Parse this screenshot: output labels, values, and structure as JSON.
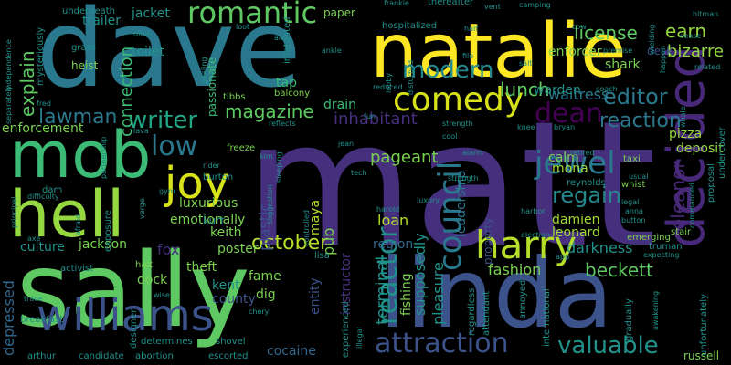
{
  "words": [
    {
      "text": "matt",
      "color": "#46307e"
    },
    {
      "text": "dave",
      "color": "#2a788e"
    },
    {
      "text": "sally",
      "color": "#5ec962"
    },
    {
      "text": "linda",
      "color": "#3b528b"
    },
    {
      "text": "natalie",
      "color": "#fde725"
    },
    {
      "text": "mob",
      "color": "#3bbb75"
    },
    {
      "text": "hell",
      "color": "#95d840"
    },
    {
      "text": "williams",
      "color": "#3b528b"
    },
    {
      "text": "decided",
      "color": "#482878"
    },
    {
      "text": "harry",
      "color": "#b5de2b"
    },
    {
      "text": "comedy",
      "color": "#d8e219"
    },
    {
      "text": "joy",
      "color": "#d8e219"
    },
    {
      "text": "modern",
      "color": "#23888e"
    },
    {
      "text": "romantic",
      "color": "#5ec962"
    },
    {
      "text": "attraction",
      "color": "#3b528b"
    },
    {
      "text": "writer",
      "color": "#21a685"
    },
    {
      "text": "jewel",
      "color": "#2a788e"
    },
    {
      "text": "dean",
      "color": "#440154"
    },
    {
      "text": "council",
      "color": "#2a788e"
    },
    {
      "text": "reactor",
      "color": "#21918c"
    },
    {
      "text": "valuable",
      "color": "#21918c"
    },
    {
      "text": "editor",
      "color": "#2a788e"
    },
    {
      "text": "reaction",
      "color": "#2a788e"
    },
    {
      "text": "low",
      "color": "#2a788e"
    },
    {
      "text": "lawman",
      "color": "#2a788e"
    },
    {
      "text": "explain",
      "color": "#5ec962"
    },
    {
      "text": "regain",
      "color": "#23888e"
    },
    {
      "text": "october",
      "color": "#b5de2b"
    },
    {
      "text": "beckett",
      "color": "#5ec962"
    },
    {
      "text": "magazine",
      "color": "#5ec962"
    },
    {
      "text": "lunch",
      "color": "#5ec962"
    },
    {
      "text": "license",
      "color": "#5ec962"
    },
    {
      "text": "earn",
      "color": "#95d840"
    },
    {
      "text": "bizarre",
      "color": "#95d840"
    },
    {
      "text": "eleanor",
      "color": "#482878"
    },
    {
      "text": "inhabitant",
      "color": "#46307e"
    },
    {
      "text": "pageant",
      "color": "#7ad151"
    },
    {
      "text": "terminal",
      "color": "#21918c"
    },
    {
      "text": "connection",
      "color": "#3bbb75"
    },
    {
      "text": "pleasure",
      "color": "#21918c"
    },
    {
      "text": "supposedly",
      "color": "#21918c"
    },
    {
      "text": "depressed",
      "color": "#31688e"
    },
    {
      "text": "plastic",
      "color": "#3b528b"
    },
    {
      "text": "fashion",
      "color": "#7ad151"
    },
    {
      "text": "darkness",
      "color": "#21918c"
    },
    {
      "text": "leadership",
      "color": "#2a788e"
    },
    {
      "text": "kent",
      "color": "#21918c"
    },
    {
      "text": "county",
      "color": "#3b528b"
    },
    {
      "text": "fox",
      "color": "#46307e"
    },
    {
      "text": "region",
      "color": "#31688e"
    },
    {
      "text": "cocaine",
      "color": "#31688e"
    },
    {
      "text": "mona",
      "color": "#a2da37"
    },
    {
      "text": "damien",
      "color": "#a2da37"
    },
    {
      "text": "leonard",
      "color": "#a2da37"
    },
    {
      "text": "maya",
      "color": "#b5de2b"
    },
    {
      "text": "loan",
      "color": "#b5de2b"
    },
    {
      "text": "pub",
      "color": "#7ad151"
    },
    {
      "text": "jackson",
      "color": "#7ad151"
    },
    {
      "text": "keith",
      "color": "#7ad151"
    },
    {
      "text": "theft",
      "color": "#7ad151"
    },
    {
      "text": "dock",
      "color": "#7ad151"
    },
    {
      "text": "fame",
      "color": "#7ad151"
    },
    {
      "text": "dig",
      "color": "#7ad151"
    },
    {
      "text": "calm",
      "color": "#7ad151"
    },
    {
      "text": "waitress",
      "color": "#2a788e"
    },
    {
      "text": "warden",
      "color": "#21918c"
    },
    {
      "text": "shark",
      "color": "#7ad151"
    },
    {
      "text": "pizza",
      "color": "#95d840"
    },
    {
      "text": "deposit",
      "color": "#95d840"
    },
    {
      "text": "luxurious",
      "color": "#7ad151"
    },
    {
      "text": "emotionally",
      "color": "#7ad151"
    },
    {
      "text": "poster",
      "color": "#7ad151"
    },
    {
      "text": "culture",
      "color": "#21918c"
    },
    {
      "text": "instructor",
      "color": "#46307e"
    },
    {
      "text": "entity",
      "color": "#3b528b"
    },
    {
      "text": "fishing",
      "color": "#7ad151"
    },
    {
      "text": "property",
      "color": "#3b528b"
    },
    {
      "text": "trailer",
      "color": "#21918c"
    },
    {
      "text": "jacket",
      "color": "#21918c"
    },
    {
      "text": "toilet",
      "color": "#21918c"
    },
    {
      "text": "enforcement",
      "color": "#7ad151"
    },
    {
      "text": "enforcer",
      "color": "#7ad151"
    },
    {
      "text": "desk",
      "color": "#3b528b"
    },
    {
      "text": "drain",
      "color": "#3bbb75"
    },
    {
      "text": "tap",
      "color": "#3bbb75"
    },
    {
      "text": "passionate",
      "color": "#3bbb75"
    },
    {
      "text": "kurt",
      "color": "#21918c"
    },
    {
      "text": "russell",
      "color": "#7ad151"
    },
    {
      "text": "heist",
      "color": "#7ad151"
    },
    {
      "text": "paper",
      "color": "#7ad151"
    },
    {
      "text": "tibbs",
      "color": "#7ad151"
    },
    {
      "text": "balcony",
      "color": "#7ad151"
    },
    {
      "text": "freeze",
      "color": "#7ad151"
    },
    {
      "text": "burton",
      "color": "#21918c"
    },
    {
      "text": "lisa",
      "color": "#21918c"
    },
    {
      "text": "halt",
      "color": "#7ad151"
    },
    {
      "text": "shovel",
      "color": "#21918c"
    },
    {
      "text": "activist",
      "color": "#21918c"
    },
    {
      "text": "breakfast",
      "color": "#21918c"
    },
    {
      "text": "designer",
      "color": "#21918c"
    },
    {
      "text": "dam",
      "color": "#21918c"
    },
    {
      "text": "attendant",
      "color": "#21918c"
    },
    {
      "text": "annoyed",
      "color": "#21918c"
    },
    {
      "text": "reynolds",
      "color": "#21918c"
    },
    {
      "text": "taxi",
      "color": "#7ad151"
    },
    {
      "text": "whist",
      "color": "#7ad151"
    },
    {
      "text": "stair",
      "color": "#7ad151"
    },
    {
      "text": "truman",
      "color": "#21918c"
    },
    {
      "text": "emerging",
      "color": "#7ad151"
    },
    {
      "text": "international",
      "color": "#21918c"
    },
    {
      "text": "gradually",
      "color": "#21918c"
    },
    {
      "text": "unfortunately",
      "color": "#21918c"
    },
    {
      "text": "proposal",
      "color": "#21918c"
    },
    {
      "text": "undercover",
      "color": "#21918c"
    },
    {
      "text": "experienced",
      "color": "#21918c"
    },
    {
      "text": "regardless",
      "color": "#21918c"
    },
    {
      "text": "underneath",
      "color": "#21918c"
    },
    {
      "text": "hospitalized",
      "color": "#21918c"
    },
    {
      "text": "infatuated",
      "color": "#21918c"
    },
    {
      "text": "thereafter",
      "color": "#21918c"
    },
    {
      "text": "mysteriously",
      "color": "#21918c"
    },
    {
      "text": "determines",
      "color": "#21918c"
    },
    {
      "text": "escorted",
      "color": "#21918c"
    },
    {
      "text": "abortion",
      "color": "#21918c"
    },
    {
      "text": "candidate",
      "color": "#21918c"
    },
    {
      "text": "arthur",
      "color": "#21918c"
    },
    {
      "text": "separately",
      "color": "#21918c"
    },
    {
      "text": "independence",
      "color": "#21918c"
    },
    {
      "text": "partnership",
      "color": "#21918c"
    },
    {
      "text": "principal",
      "color": "#21918c"
    },
    {
      "text": "difficulty",
      "color": "#21918c"
    },
    {
      "text": "exposure",
      "color": "#21918c"
    },
    {
      "text": "grass",
      "color": "#21918c"
    },
    {
      "text": "fred",
      "color": "#21918c"
    },
    {
      "text": "ditch",
      "color": "#21918c"
    },
    {
      "text": "dealing",
      "color": "#21918c"
    },
    {
      "text": "loot",
      "color": "#21918c"
    },
    {
      "text": "alec",
      "color": "#21918c"
    },
    {
      "text": "ankle",
      "color": "#21918c"
    },
    {
      "text": "frankie",
      "color": "#21918c"
    },
    {
      "text": "vent",
      "color": "#21918c"
    },
    {
      "text": "camping",
      "color": "#21918c"
    },
    {
      "text": "file",
      "color": "#21918c"
    },
    {
      "text": "salt",
      "color": "#21918c"
    },
    {
      "text": "premise",
      "color": "#21918c"
    },
    {
      "text": "cease",
      "color": "#21918c"
    },
    {
      "text": "hitman",
      "color": "#21918c"
    },
    {
      "text": "related",
      "color": "#21918c"
    },
    {
      "text": "happen",
      "color": "#21918c"
    },
    {
      "text": "lobby",
      "color": "#21918c"
    },
    {
      "text": "reduced",
      "color": "#21918c"
    },
    {
      "text": "disturbed",
      "color": "#21918c"
    },
    {
      "text": "election",
      "color": "#21918c"
    },
    {
      "text": "strength",
      "color": "#21918c"
    },
    {
      "text": "cool",
      "color": "#21918c"
    },
    {
      "text": "reflects",
      "color": "#21918c"
    },
    {
      "text": "bryan",
      "color": "#21918c"
    },
    {
      "text": "alarm",
      "color": "#21918c"
    },
    {
      "text": "knee",
      "color": "#21918c"
    },
    {
      "text": "retired",
      "color": "#21918c"
    },
    {
      "text": "tech",
      "color": "#21918c"
    },
    {
      "text": "controlled",
      "color": "#21918c"
    },
    {
      "text": "harold",
      "color": "#21918c"
    },
    {
      "text": "luxury",
      "color": "#21918c"
    },
    {
      "text": "harbor",
      "color": "#21918c"
    },
    {
      "text": "commanded",
      "color": "#21918c"
    },
    {
      "text": "usual",
      "color": "#21918c"
    },
    {
      "text": "legal",
      "color": "#21918c"
    },
    {
      "text": "button",
      "color": "#21918c"
    },
    {
      "text": "anna",
      "color": "#21918c"
    },
    {
      "text": "app",
      "color": "#21918c"
    },
    {
      "text": "expecting",
      "color": "#21918c"
    },
    {
      "text": "awakening",
      "color": "#21918c"
    },
    {
      "text": "rider",
      "color": "#21918c"
    },
    {
      "text": "gym",
      "color": "#21918c"
    },
    {
      "text": "verge",
      "color": "#21918c"
    },
    {
      "text": "axe",
      "color": "#21918c"
    },
    {
      "text": "afraid",
      "color": "#21918c"
    },
    {
      "text": "trace",
      "color": "#21918c"
    },
    {
      "text": "cheryl",
      "color": "#21918c"
    },
    {
      "text": "wise",
      "color": "#21918c"
    },
    {
      "text": "lava",
      "color": "#21918c"
    },
    {
      "text": "strength",
      "color": "#21918c"
    },
    {
      "text": "sleeping",
      "color": "#21918c"
    },
    {
      "text": "illegal",
      "color": "#21918c"
    },
    {
      "text": "jean",
      "color": "#21918c"
    },
    {
      "text": "kim",
      "color": "#21918c"
    },
    {
      "text": "whale",
      "color": "#21918c"
    },
    {
      "text": "cow",
      "color": "#21918c"
    },
    {
      "text": "wielding",
      "color": "#21918c"
    },
    {
      "text": "half",
      "color": "#21918c"
    },
    {
      "text": "suggestion",
      "color": "#21918c"
    },
    {
      "text": "fun",
      "color": "#21918c"
    },
    {
      "text": "coach",
      "color": "#21918c"
    }
  ]
}
